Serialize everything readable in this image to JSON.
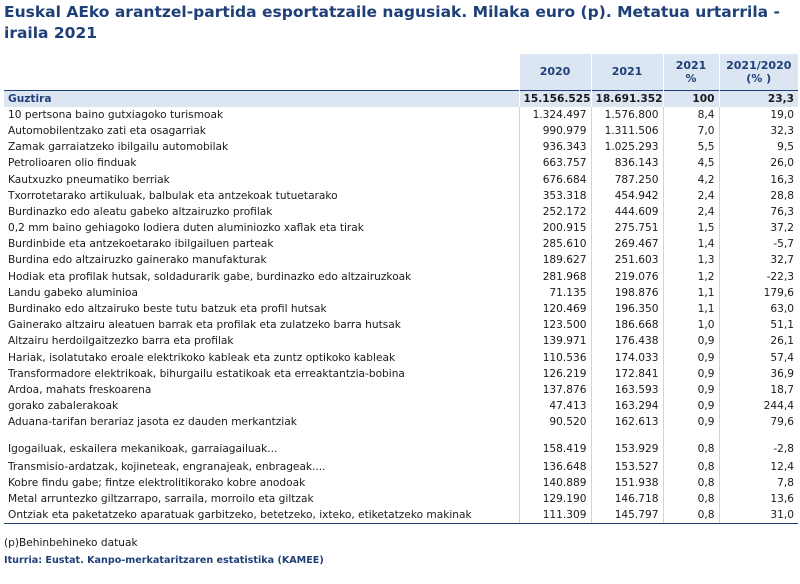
{
  "title": "Euskal AEko arantzel-partida esportatzaile nagusiak. Milaka euro (p). Metatua urtarrila - iraila 2021",
  "table": {
    "headers": {
      "h2020": "2020",
      "h2021": "2021",
      "hshare_a": "2021",
      "hshare_b": "%",
      "hchange_a": "2021/2020",
      "hchange_b": "(% )"
    },
    "total": {
      "label": "Guztira",
      "v2020": "15.156.525",
      "v2021": "18.691.352",
      "share": "100",
      "change": "23,3"
    },
    "rows": [
      {
        "label": "10 pertsona baino gutxiagoko turismoak",
        "v2020": "1.324.497",
        "v2021": "1.576.800",
        "share": "8,4",
        "change": "19,0"
      },
      {
        "label": "Automobilentzako zati eta osagarriak",
        "v2020": "990.979",
        "v2021": "1.311.506",
        "share": "7,0",
        "change": "32,3"
      },
      {
        "label": "Zamak garraiatzeko ibilgailu automobilak",
        "v2020": "936.343",
        "v2021": "1.025.293",
        "share": "5,5",
        "change": "9,5"
      },
      {
        "label": "Petrolioaren olio finduak",
        "v2020": "663.757",
        "v2021": "836.143",
        "share": "4,5",
        "change": "26,0"
      },
      {
        "label": "Kautxuzko pneumatiko berriak",
        "v2020": "676.684",
        "v2021": "787.250",
        "share": "4,2",
        "change": "16,3"
      },
      {
        "label": "Txorrotetarako artikuluak, balbulak eta antzekoak tutuetarako",
        "v2020": "353.318",
        "v2021": "454.942",
        "share": "2,4",
        "change": "28,8"
      },
      {
        "label": "Burdinazko edo aleatu gabeko altzairuzko profilak",
        "v2020": "252.172",
        "v2021": "444.609",
        "share": "2,4",
        "change": "76,3"
      },
      {
        "label": "0,2 mm baino gehiagoko lodiera duten aluminiozko xaflak eta tirak",
        "v2020": "200.915",
        "v2021": "275.751",
        "share": "1,5",
        "change": "37,2"
      },
      {
        "label": "Burdinbide eta antzekoetarako ibilgailuen parteak",
        "v2020": "285.610",
        "v2021": "269.467",
        "share": "1,4",
        "change": "-5,7"
      },
      {
        "label": "Burdina edo altzairuzko gainerako manufakturak",
        "v2020": "189.627",
        "v2021": "251.603",
        "share": "1,3",
        "change": "32,7"
      },
      {
        "label": "Hodiak eta profilak hutsak, soldadurarik gabe, burdinazko edo altzairuzkoak",
        "v2020": "281.968",
        "v2021": "219.076",
        "share": "1,2",
        "change": "-22,3"
      },
      {
        "label": "Landu gabeko aluminioa",
        "v2020": "71.135",
        "v2021": "198.876",
        "share": "1,1",
        "change": "179,6"
      },
      {
        "label": "Burdinako edo altzairuko beste tutu batzuk eta profil hutsak",
        "v2020": "120.469",
        "v2021": "196.350",
        "share": "1,1",
        "change": "63,0"
      },
      {
        "label": "Gainerako altzairu aleatuen barrak eta profilak eta zulatzeko barra hutsak",
        "v2020": "123.500",
        "v2021": "186.668",
        "share": "1,0",
        "change": "51,1"
      },
      {
        "label": "Altzairu herdoilgaitzezko barra eta profilak",
        "v2020": "139.971",
        "v2021": "176.438",
        "share": "0,9",
        "change": "26,1"
      },
      {
        "label": "Hariak, isolatutako eroale elektrikoko kableak eta zuntz optikoko kableak",
        "v2020": "110.536",
        "v2021": "174.033",
        "share": "0,9",
        "change": "57,4"
      },
      {
        "label": "Transformadore elektrikoak, bihurgailu estatikoak eta erreaktantzia-bobina",
        "v2020": "126.219",
        "v2021": "172.841",
        "share": "0,9",
        "change": "36,9"
      },
      {
        "label": "Ardoa, mahats freskoarena",
        "v2020": "137.876",
        "v2021": "163.593",
        "share": "0,9",
        "change": "18,7"
      },
      {
        "label": "gorako zabalerakoak",
        "v2020": "47.413",
        "v2021": "163.294",
        "share": "0,9",
        "change": "244,4"
      },
      {
        "label": "Aduana-tarifan berariaz jasota ez dauden merkantziak",
        "v2020": "90.520",
        "v2021": "162.613",
        "share": "0,9",
        "change": "79,6"
      },
      {
        "label": "Igogailuak, eskailera mekanikoak, garraiagailuak...",
        "v2020": "158.419",
        "v2021": "153.929",
        "share": "0,8",
        "change": "-2,8",
        "tall": true
      },
      {
        "label": "Transmisio-ardatzak, kojineteak, engranajeak, enbrageak....",
        "v2020": "136.648",
        "v2021": "153.527",
        "share": "0,8",
        "change": "12,4"
      },
      {
        "label": "Kobre findu gabe; fintze elektrolitikorako kobre anodoak",
        "v2020": "140.889",
        "v2021": "151.938",
        "share": "0,8",
        "change": "7,8"
      },
      {
        "label": "Metal arruntezko giltzarrapo, sarraila, morroilo eta giltzak",
        "v2020": "129.190",
        "v2021": "146.718",
        "share": "0,8",
        "change": "13,6"
      },
      {
        "label": "Ontziak eta paketatzeko aparatuak garbitzeko, betetzeko, ixteko, etiketatzeko makinak",
        "v2020": "111.309",
        "v2021": "145.797",
        "share": "0,8",
        "change": "31,0"
      }
    ]
  },
  "footnote": "(p)Behinbehineko datuak",
  "source": "Iturria: Eustat. Kanpo-merkataritzaren estatistika (KAMEE)"
}
